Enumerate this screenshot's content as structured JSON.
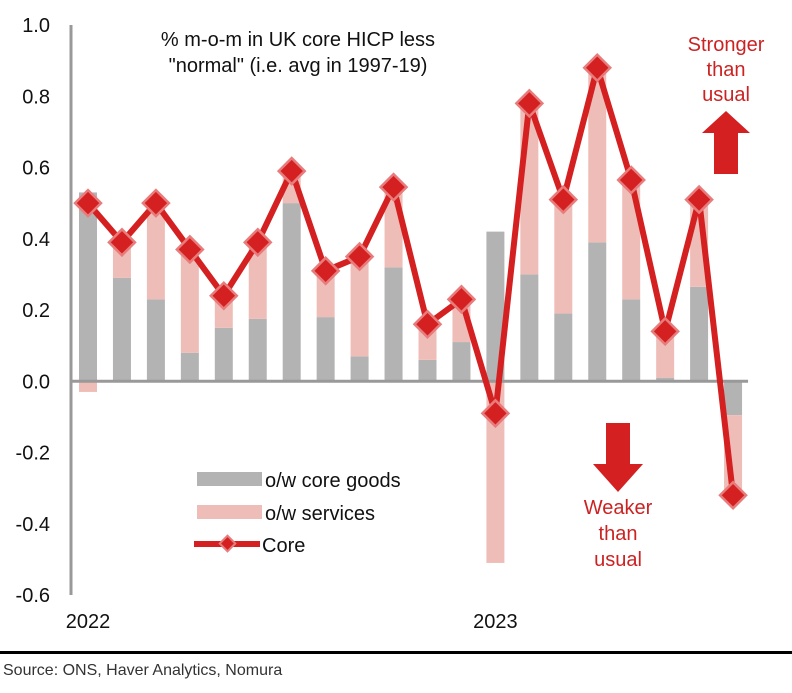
{
  "chart_data": {
    "type": "bar",
    "stacked": true,
    "title_lines": [
      "% m-o-m in UK core HICP less",
      "\"normal\" (i.e. avg in 1997-19)"
    ],
    "xlabel": "",
    "ylabel": "",
    "ylim": [
      -0.6,
      1.0
    ],
    "yticks": [
      1.0,
      0.8,
      0.6,
      0.4,
      0.2,
      0.0,
      -0.2,
      -0.4,
      -0.6
    ],
    "ytick_labels": [
      "1.0",
      "0.8",
      "0.6",
      "0.4",
      "0.2",
      "0.0",
      "-0.2",
      "-0.4",
      "-0.6"
    ],
    "x_tick_labels": [
      {
        "index": 0,
        "label": "2022"
      },
      {
        "index": 12,
        "label": "2023"
      }
    ],
    "categories": [
      "Jan 2022",
      "Feb 2022",
      "Mar 2022",
      "Apr 2022",
      "May 2022",
      "Jun 2022",
      "Jul 2022",
      "Aug 2022",
      "Sep 2022",
      "Oct 2022",
      "Nov 2022",
      "Dec 2022",
      "Jan 2023",
      "Feb 2023",
      "Mar 2023",
      "Apr 2023",
      "May 2023",
      "Jun 2023",
      "Jul 2023",
      "Aug 2023"
    ],
    "series": [
      {
        "name": "o/w core goods",
        "kind": "bar",
        "color": "#b3b3b3",
        "values": [
          0.53,
          0.29,
          0.23,
          0.08,
          0.15,
          0.175,
          0.5,
          0.18,
          0.07,
          0.32,
          0.06,
          0.11,
          0.42,
          0.3,
          0.19,
          0.39,
          0.23,
          0.01,
          0.265,
          -0.095
        ]
      },
      {
        "name": "o/w services",
        "kind": "bar",
        "color": "#efbdb8",
        "values": [
          -0.03,
          0.1,
          0.27,
          0.29,
          0.09,
          0.215,
          0.09,
          0.13,
          0.28,
          0.225,
          0.1,
          0.12,
          -0.51,
          0.48,
          0.32,
          0.49,
          0.335,
          0.13,
          0.245,
          -0.225
        ]
      },
      {
        "name": "Core",
        "kind": "line",
        "color": "#d42020",
        "marker": "diamond",
        "values": [
          0.5,
          0.39,
          0.5,
          0.37,
          0.24,
          0.39,
          0.59,
          0.31,
          0.35,
          0.545,
          0.16,
          0.23,
          -0.09,
          0.78,
          0.51,
          0.88,
          0.565,
          0.14,
          0.51,
          -0.32
        ]
      }
    ],
    "legend": {
      "placement": "lower-left",
      "entries": [
        "o/w core goods",
        "o/w services",
        "Core"
      ]
    },
    "annotations": [
      {
        "id": "stronger",
        "lines": [
          "Stronger",
          "than",
          "usual"
        ],
        "arrow": "up",
        "color": "#d42020"
      },
      {
        "id": "weaker",
        "lines": [
          "Weaker",
          "than",
          "usual"
        ],
        "arrow": "down",
        "color": "#d42020"
      }
    ],
    "grid": false
  },
  "source": "Source: ONS, Haver Analytics, Nomura"
}
